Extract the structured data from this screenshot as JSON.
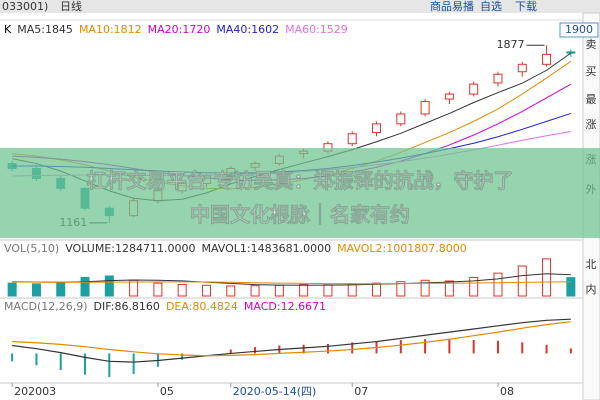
{
  "toolbar": {
    "left": [
      "033001)",
      "日线"
    ],
    "right": [
      "商品易播",
      "自选",
      "下载"
    ]
  },
  "side_panel": {
    "price_box": "1900",
    "labels": [
      "卖",
      "买",
      "最",
      "涨",
      "涨",
      "外",
      "北",
      "内"
    ]
  },
  "overlay": {
    "lines": [
      "杠杆交易平台 专访吴真：郑振铎的抗战，守护了",
      "中国文化根脉｜名家有约"
    ]
  },
  "chart_data": [
    {
      "type": "candlestick",
      "legend_label": "K",
      "open": [
        1400,
        1380,
        1340,
        1300,
        1220,
        1190,
        1250,
        1290,
        1320,
        1350,
        1385,
        1400,
        1440,
        1450,
        1480,
        1525,
        1560,
        1600,
        1660,
        1680,
        1725,
        1770,
        1800,
        1850
      ],
      "high": [
        1410,
        1390,
        1350,
        1305,
        1230,
        1260,
        1300,
        1330,
        1360,
        1390,
        1410,
        1440,
        1460,
        1490,
        1530,
        1570,
        1610,
        1660,
        1690,
        1730,
        1770,
        1810,
        1877,
        1860
      ],
      "low": [
        1370,
        1330,
        1290,
        1210,
        1161,
        1185,
        1240,
        1280,
        1305,
        1340,
        1370,
        1390,
        1420,
        1440,
        1470,
        1510,
        1550,
        1590,
        1640,
        1670,
        1710,
        1750,
        1790,
        1830
      ],
      "close": [
        1380,
        1340,
        1300,
        1220,
        1190,
        1250,
        1290,
        1320,
        1350,
        1380,
        1400,
        1430,
        1450,
        1480,
        1520,
        1560,
        1600,
        1650,
        1680,
        1720,
        1760,
        1800,
        1840,
        1845
      ],
      "up_color": "#e0302a",
      "down_color": "#1aa0a0",
      "ylim": [
        1100,
        1906
      ],
      "high_label": 1877,
      "low_label": 1161,
      "series": [
        {
          "name": "MA5:1845",
          "color": "#333333",
          "values": [
            1420,
            1400,
            1370,
            1330,
            1290,
            1260,
            1250,
            1256,
            1282,
            1318,
            1348,
            1376,
            1402,
            1428,
            1456,
            1488,
            1522,
            1562,
            1602,
            1646,
            1686,
            1724,
            1776,
            1845
          ]
        },
        {
          "name": "MA10:1812",
          "color": "#e08a00",
          "values": [
            1440,
            1430,
            1415,
            1395,
            1370,
            1345,
            1325,
            1310,
            1300,
            1298,
            1305,
            1318,
            1335,
            1355,
            1380,
            1410,
            1445,
            1485,
            1525,
            1570,
            1620,
            1680,
            1745,
            1812
          ]
        },
        {
          "name": "MA20:1720",
          "color": "#d000d0",
          "values": [
            1430,
            1425,
            1418,
            1408,
            1395,
            1380,
            1365,
            1352,
            1342,
            1335,
            1332,
            1334,
            1340,
            1350,
            1365,
            1385,
            1410,
            1440,
            1475,
            1515,
            1560,
            1610,
            1665,
            1720
          ]
        },
        {
          "name": "MA40:1602",
          "color": "#2020d0",
          "values": [
            1390,
            1390,
            1388,
            1385,
            1380,
            1375,
            1370,
            1366,
            1363,
            1362,
            1363,
            1366,
            1372,
            1380,
            1392,
            1406,
            1422,
            1440,
            1460,
            1482,
            1508,
            1538,
            1570,
            1602
          ]
        },
        {
          "name": "MA60:1529",
          "color": "#e070e0",
          "values": [
            1350,
            1352,
            1353,
            1354,
            1354,
            1353,
            1352,
            1352,
            1353,
            1355,
            1358,
            1362,
            1368,
            1375,
            1384,
            1395,
            1408,
            1422,
            1438,
            1455,
            1474,
            1494,
            1512,
            1529
          ]
        }
      ]
    },
    {
      "type": "bar",
      "title": "VOL(5,10)",
      "ylim": [
        0,
        2800000
      ],
      "up_color": "#e0302a",
      "down_color": "#1aa0a0",
      "series": [
        {
          "name": "VOLUME:1284711.0000",
          "kind": "bar",
          "color": "#333333",
          "values": [
            900000,
            850000,
            950000,
            1300000,
            1400000,
            1100000,
            900000,
            800000,
            750000,
            700000,
            720000,
            750000,
            800000,
            780000,
            850000,
            900000,
            1000000,
            1100000,
            1050000,
            1300000,
            1600000,
            2100000,
            2600000,
            1284711
          ]
        },
        {
          "name": "MAVOL1:1483681.0000",
          "kind": "line",
          "color": "#333333",
          "values": [
            1000000,
            980000,
            960000,
            1000000,
            1080000,
            1120000,
            1100000,
            1060000,
            960000,
            880000,
            800000,
            760000,
            750000,
            760000,
            780000,
            820000,
            870000,
            920000,
            980000,
            1060000,
            1200000,
            1430000,
            1560000,
            1483681
          ]
        },
        {
          "name": "MAVOL2:1001807.8000",
          "kind": "line",
          "color": "#e08a00",
          "values": [
            980000,
            970000,
            960000,
            960000,
            970000,
            980000,
            990000,
            990000,
            980000,
            960000,
            930000,
            900000,
            880000,
            870000,
            860000,
            860000,
            870000,
            880000,
            890000,
            910000,
            930000,
            950000,
            980000,
            1001807.8
          ]
        }
      ]
    },
    {
      "type": "line",
      "title": "MACD(12,26,9)",
      "ylim": [
        -70,
        100
      ],
      "up_color": "#e0302a",
      "down_color": "#1aa0a0",
      "categories": [
        "202003",
        null,
        null,
        null,
        null,
        null,
        "05",
        null,
        null,
        "2020-05-14(四)",
        null,
        null,
        null,
        null,
        "07",
        null,
        null,
        null,
        null,
        null,
        "08",
        null,
        null,
        null
      ],
      "series": [
        {
          "name": "DIF:86.8160",
          "kind": "line",
          "color": "#333333",
          "values": [
            20,
            12,
            2,
            -10,
            -20,
            -22,
            -18,
            -12,
            -6,
            0,
            5,
            10,
            14,
            18,
            24,
            30,
            38,
            46,
            54,
            62,
            70,
            78,
            84,
            86.816
          ]
        },
        {
          "name": "DEA:80.4824",
          "kind": "line",
          "color": "#e08a00",
          "values": [
            30,
            27,
            23,
            17,
            10,
            4,
            -1,
            -4,
            -6,
            -5,
            -3,
            0,
            3,
            6,
            10,
            15,
            21,
            28,
            36,
            45,
            54,
            64,
            73,
            80.4824
          ]
        },
        {
          "name": "MACD:12.6671",
          "kind": "bar",
          "color": "#d000d0",
          "values": [
            -20,
            -30,
            -42,
            -54,
            -60,
            -52,
            -34,
            -16,
            0,
            10,
            16,
            20,
            22,
            24,
            28,
            30,
            34,
            36,
            36,
            34,
            32,
            28,
            22,
            12.6671
          ]
        }
      ]
    }
  ]
}
